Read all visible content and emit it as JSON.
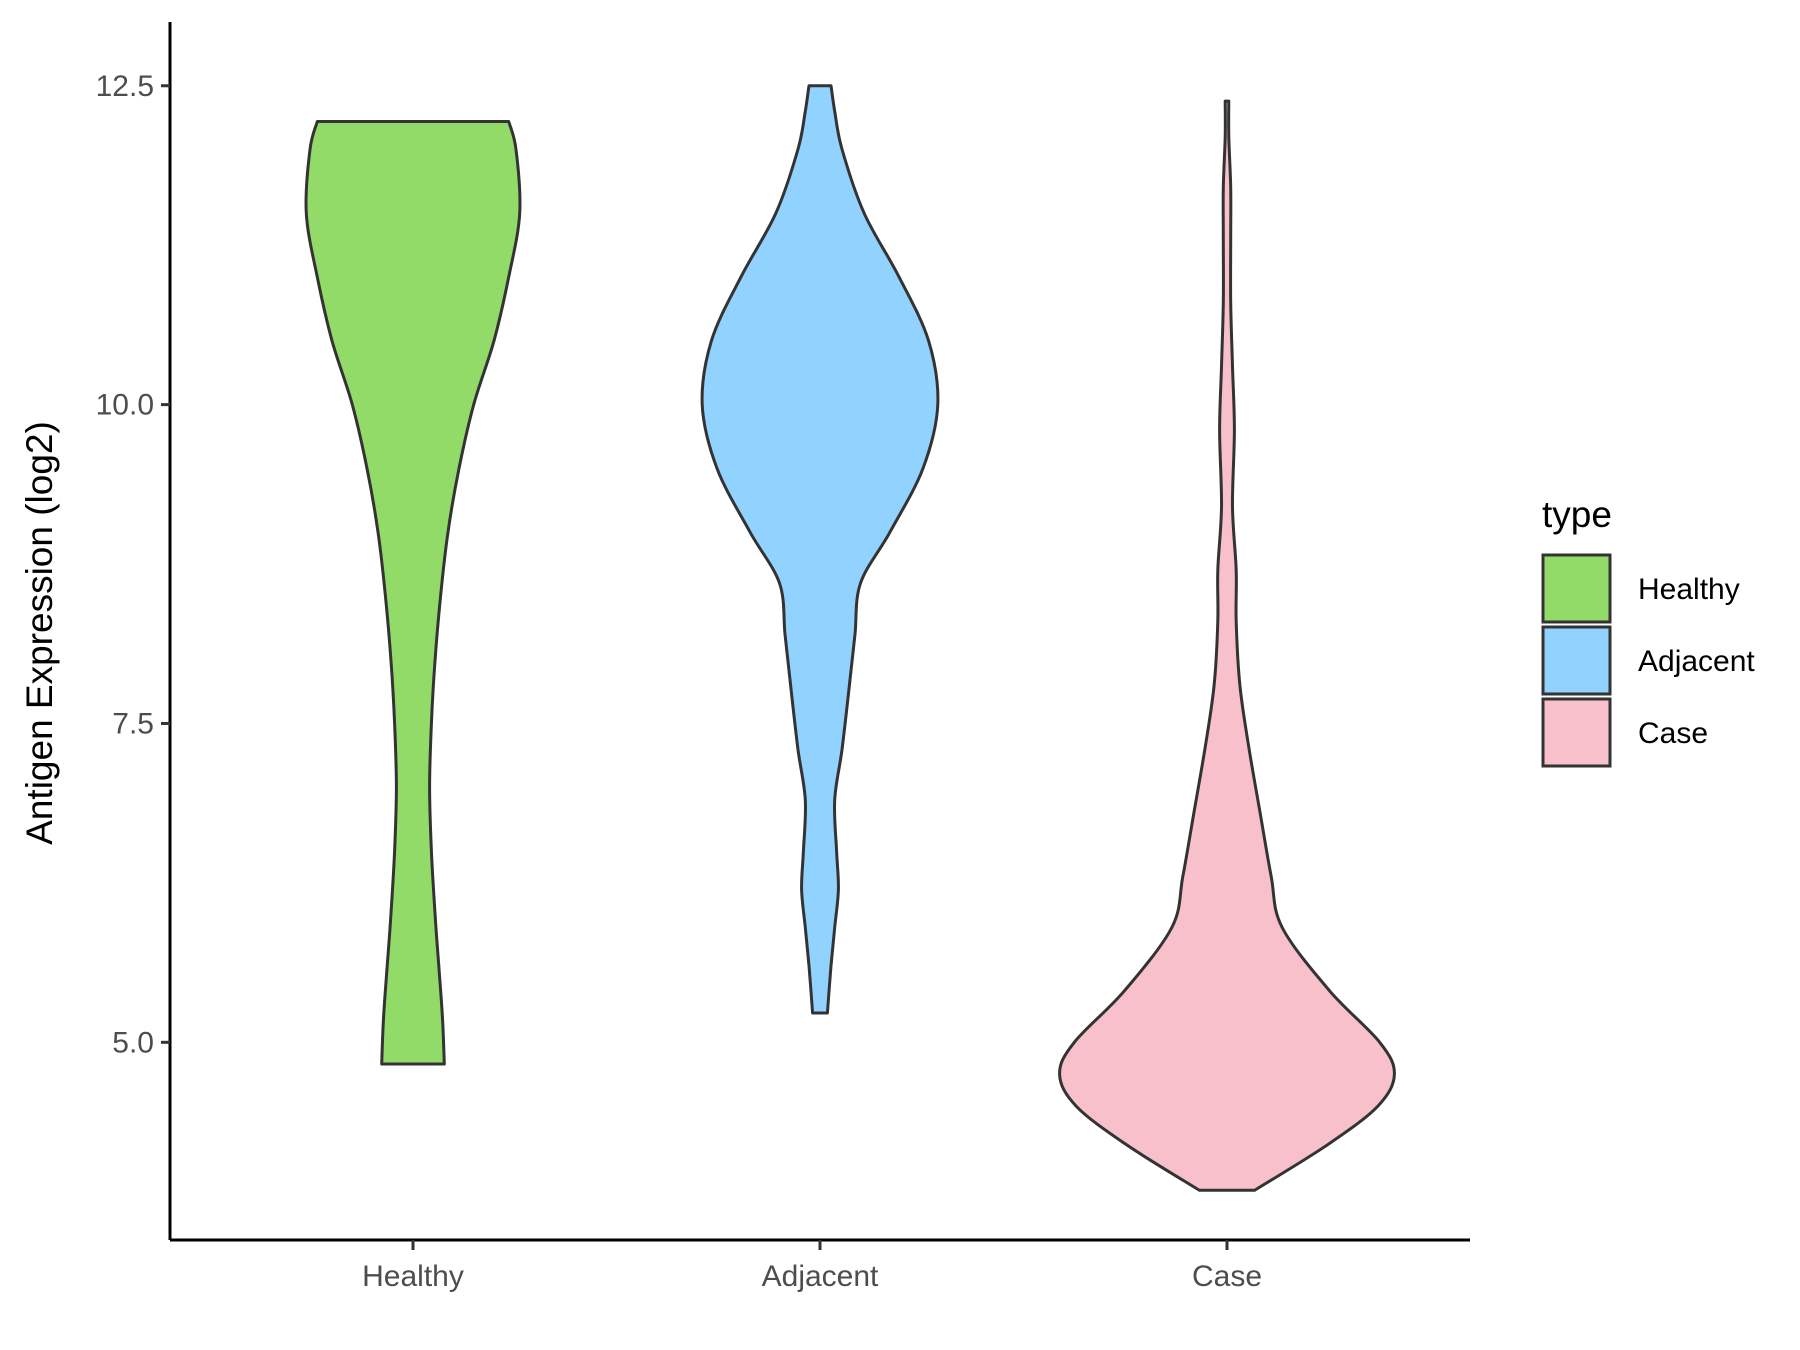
{
  "chart_data": {
    "type": "violin",
    "title": "",
    "xlabel": "",
    "ylabel": "Antigen Expression (log2)",
    "ylim": [
      3.45,
      13.0
    ],
    "yticks": [
      "5.0",
      "7.5",
      "10.0",
      "12.5"
    ],
    "ytick_values": [
      5.0,
      7.5,
      10.0,
      12.5
    ],
    "categories": [
      "Healthy",
      "Adjacent",
      "Case"
    ],
    "legend": {
      "title": "type",
      "position": "right",
      "entries": [
        "Healthy",
        "Adjacent",
        "Case"
      ]
    },
    "series": [
      {
        "name": "Healthy",
        "color": "#93DB69",
        "y_min": 4.83,
        "y_max": 12.22,
        "density_profile": [
          [
            4.83,
            0.17
          ],
          [
            5.2,
            0.16
          ],
          [
            5.6,
            0.14
          ],
          [
            6.0,
            0.12
          ],
          [
            6.5,
            0.1
          ],
          [
            7.0,
            0.09
          ],
          [
            7.5,
            0.1
          ],
          [
            8.0,
            0.12
          ],
          [
            8.5,
            0.15
          ],
          [
            9.0,
            0.19
          ],
          [
            9.5,
            0.25
          ],
          [
            10.0,
            0.33
          ],
          [
            10.5,
            0.44
          ],
          [
            11.0,
            0.52
          ],
          [
            11.5,
            0.58
          ],
          [
            12.0,
            0.56
          ],
          [
            12.22,
            0.52
          ]
        ]
      },
      {
        "name": "Adjacent",
        "color": "#92D2FF",
        "y_min": 5.23,
        "y_max": 12.5,
        "density_profile": [
          [
            5.23,
            0.04
          ],
          [
            5.6,
            0.06
          ],
          [
            5.9,
            0.08
          ],
          [
            6.2,
            0.1
          ],
          [
            6.5,
            0.09
          ],
          [
            6.9,
            0.08
          ],
          [
            7.3,
            0.12
          ],
          [
            7.8,
            0.16
          ],
          [
            8.2,
            0.19
          ],
          [
            8.6,
            0.22
          ],
          [
            9.0,
            0.38
          ],
          [
            9.5,
            0.56
          ],
          [
            10.0,
            0.64
          ],
          [
            10.5,
            0.59
          ],
          [
            11.0,
            0.43
          ],
          [
            11.5,
            0.24
          ],
          [
            12.0,
            0.12
          ],
          [
            12.3,
            0.08
          ],
          [
            12.5,
            0.06
          ]
        ]
      },
      {
        "name": "Case",
        "color": "#F7C0CB",
        "y_min": 3.84,
        "y_max": 12.38,
        "density_profile": [
          [
            3.84,
            0.15
          ],
          [
            4.2,
            0.55
          ],
          [
            4.5,
            0.82
          ],
          [
            4.75,
            0.91
          ],
          [
            5.0,
            0.83
          ],
          [
            5.4,
            0.56
          ],
          [
            5.9,
            0.3
          ],
          [
            6.3,
            0.24
          ],
          [
            6.8,
            0.18
          ],
          [
            7.3,
            0.12
          ],
          [
            7.8,
            0.07
          ],
          [
            8.3,
            0.05
          ],
          [
            8.7,
            0.05
          ],
          [
            9.2,
            0.03
          ],
          [
            9.8,
            0.04
          ],
          [
            10.3,
            0.03
          ],
          [
            10.8,
            0.02
          ],
          [
            11.3,
            0.02
          ],
          [
            11.7,
            0.02
          ],
          [
            12.1,
            0.01
          ],
          [
            12.38,
            0.01
          ]
        ]
      }
    ]
  }
}
